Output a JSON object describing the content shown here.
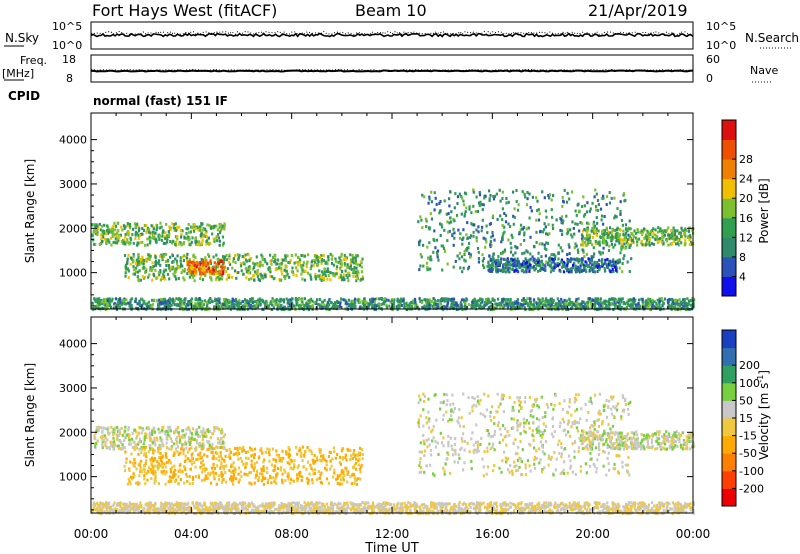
{
  "header": {
    "station": "Fort Hays West (fitACF)",
    "beam": "Beam 10",
    "date": "21/Apr/2019"
  },
  "status_panels": {
    "nsky_label": "N.Sky",
    "nsky_ticks": [
      "10^5",
      "10^0"
    ],
    "nsearch_label": "N.Search",
    "nsearch_ticks": [
      "10^5",
      "10^0"
    ],
    "freq_label": "Freq.",
    "freq_unit": "[MHz]",
    "freq_ticks": [
      "18",
      "8"
    ],
    "nave_label": "Nave",
    "nave_ticks": [
      "60",
      "0"
    ],
    "cpid_label": "CPID",
    "cpid_value": "normal (fast) 151 IF"
  },
  "chart_data": [
    {
      "type": "heatmap",
      "name": "power",
      "ylabel": "Slant Range [km]",
      "xlabel": "Time UT",
      "x_ticks": [
        "00:00",
        "04:00",
        "08:00",
        "12:00",
        "16:00",
        "20:00",
        "00:00"
      ],
      "xlim_hours": [
        0,
        24
      ],
      "ylim_km": [
        180,
        4600
      ],
      "y_ticks": [
        1000,
        2000,
        3000,
        4000
      ],
      "colorbar": {
        "label": "Power [dB]",
        "ticks": [
          4,
          8,
          12,
          16,
          20,
          24,
          28
        ],
        "colors": [
          "#1010ee",
          "#2a52b8",
          "#2e8a6a",
          "#30a050",
          "#7cc030",
          "#f0c000",
          "#f08000",
          "#ee5000",
          "#dd1010"
        ]
      },
      "regions": [
        {
          "feature": "early evening band",
          "t": [
            0.0,
            5.3
          ],
          "r": [
            1650,
            2150
          ],
          "level": 16
        },
        {
          "feature": "main echo region",
          "t": [
            1.3,
            10.8
          ],
          "r": [
            850,
            1450
          ],
          "level": 16
        },
        {
          "feature": "peak power core",
          "t": [
            3.8,
            5.3
          ],
          "r": [
            1000,
            1300
          ],
          "level": 28
        },
        {
          "feature": "near-range scatter",
          "t": [
            0.0,
            24.0
          ],
          "r": [
            200,
            450
          ],
          "level": 12
        },
        {
          "feature": "descending arc",
          "t": [
            13.0,
            21.5
          ],
          "r": [
            1050,
            2900
          ],
          "level": 12
        },
        {
          "feature": "morning band",
          "t": [
            15.8,
            21.0
          ],
          "r": [
            1050,
            1350
          ],
          "level": 8
        },
        {
          "feature": "late band",
          "t": [
            19.5,
            24.0
          ],
          "r": [
            1650,
            2050
          ],
          "level": 16
        }
      ]
    },
    {
      "type": "heatmap",
      "name": "velocity",
      "ylabel": "Slant Range [km]",
      "xlabel": "Time UT",
      "x_ticks": [
        "00:00",
        "04:00",
        "08:00",
        "12:00",
        "16:00",
        "20:00",
        "00:00"
      ],
      "xlim_hours": [
        0,
        24
      ],
      "ylim_km": [
        180,
        4600
      ],
      "y_ticks": [
        1000,
        2000,
        3000,
        4000
      ],
      "colorbar": {
        "label": "Velocity [m s",
        "label_exponent": "-1",
        "label_close": "]",
        "ticks": [
          "-200",
          "-100",
          "-50",
          "-15",
          "15",
          "50",
          "100",
          "200"
        ],
        "colors": [
          "#ee0000",
          "#ff4000",
          "#ff8000",
          "#ffaa00",
          "#f0c840",
          "#c8c8c8",
          "#78d040",
          "#30a060",
          "#3070b0",
          "#1840c0"
        ]
      },
      "regions": [
        {
          "feature": "early evening band",
          "t": [
            0.0,
            5.3
          ],
          "r": [
            1650,
            2150
          ],
          "v": 0
        },
        {
          "feature": "main echo region",
          "t": [
            1.3,
            10.8
          ],
          "r": [
            850,
            1700
          ],
          "v": -50
        },
        {
          "feature": "near-range ground scatter",
          "t": [
            0.0,
            24.0
          ],
          "r": [
            200,
            450
          ],
          "v": -15
        },
        {
          "feature": "descending arc",
          "t": [
            13.0,
            21.5
          ],
          "r": [
            1050,
            2900
          ],
          "v": 0
        },
        {
          "feature": "late band",
          "t": [
            19.5,
            24.0
          ],
          "r": [
            1650,
            2050
          ],
          "v": 0
        }
      ]
    }
  ]
}
